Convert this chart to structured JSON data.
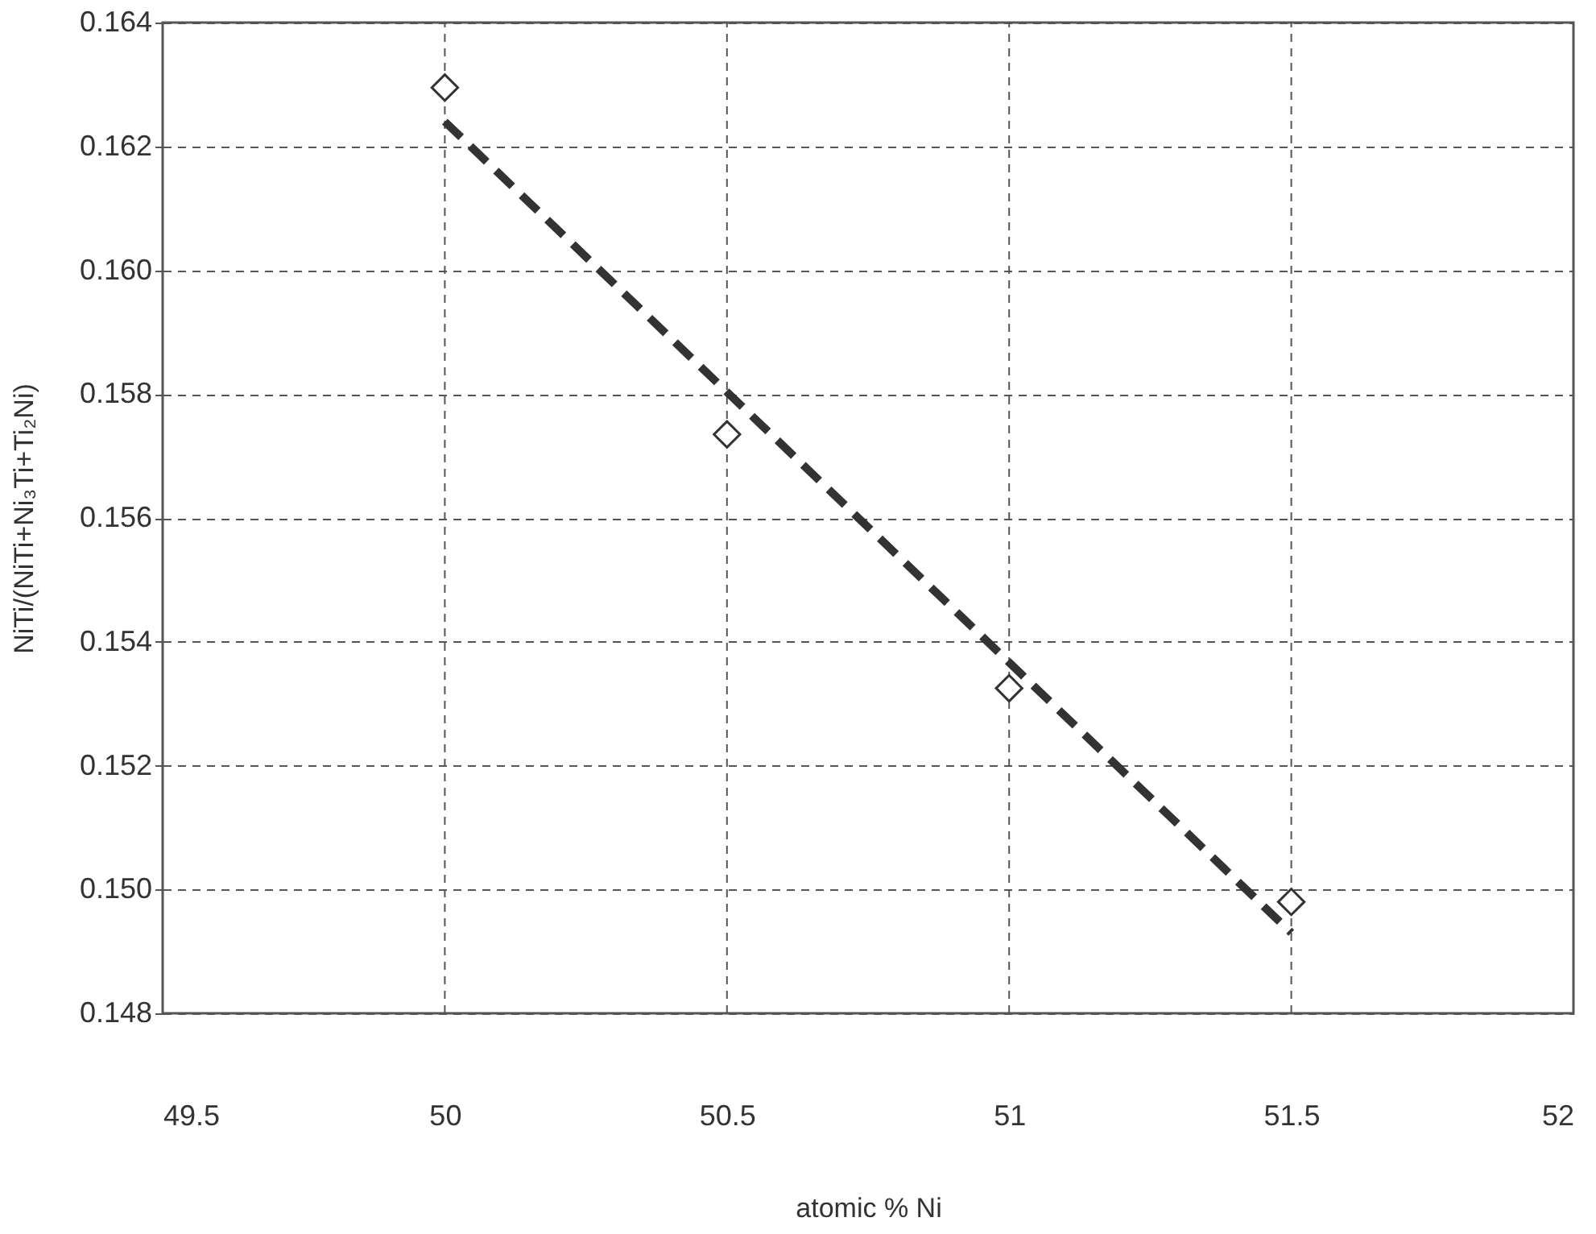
{
  "chart_data": {
    "type": "scatter",
    "xlabel": "atomic % Ni",
    "ylabel": "NiTi/(NiTi+Ni₃Ti+Ti₂Ni)",
    "x": [
      50,
      50.5,
      51,
      51.5
    ],
    "series": [
      {
        "color": "#333333",
        "marker": "diamond",
        "values": [
          0.16295,
          0.15735,
          0.15325,
          0.1498
        ]
      },
      {
        "type": "line",
        "color": "#333333",
        "line_style": "dashed",
        "x": [
          50,
          51.5
        ],
        "values": [
          0.1624,
          0.1493
        ]
      }
    ],
    "xlim": [
      49.5,
      52
    ],
    "xticks": [
      49.5,
      50,
      50.5,
      51,
      51.5,
      52
    ],
    "ylim": [
      0.148,
      0.164
    ],
    "yticks": [
      0.148,
      {
        "value": 0.15,
        "label": "0.150"
      },
      0.152,
      0.154,
      0.156,
      0.158,
      {
        "value": 0.16,
        "label": "0.160"
      },
      0.162,
      0.164
    ],
    "grid": true
  }
}
